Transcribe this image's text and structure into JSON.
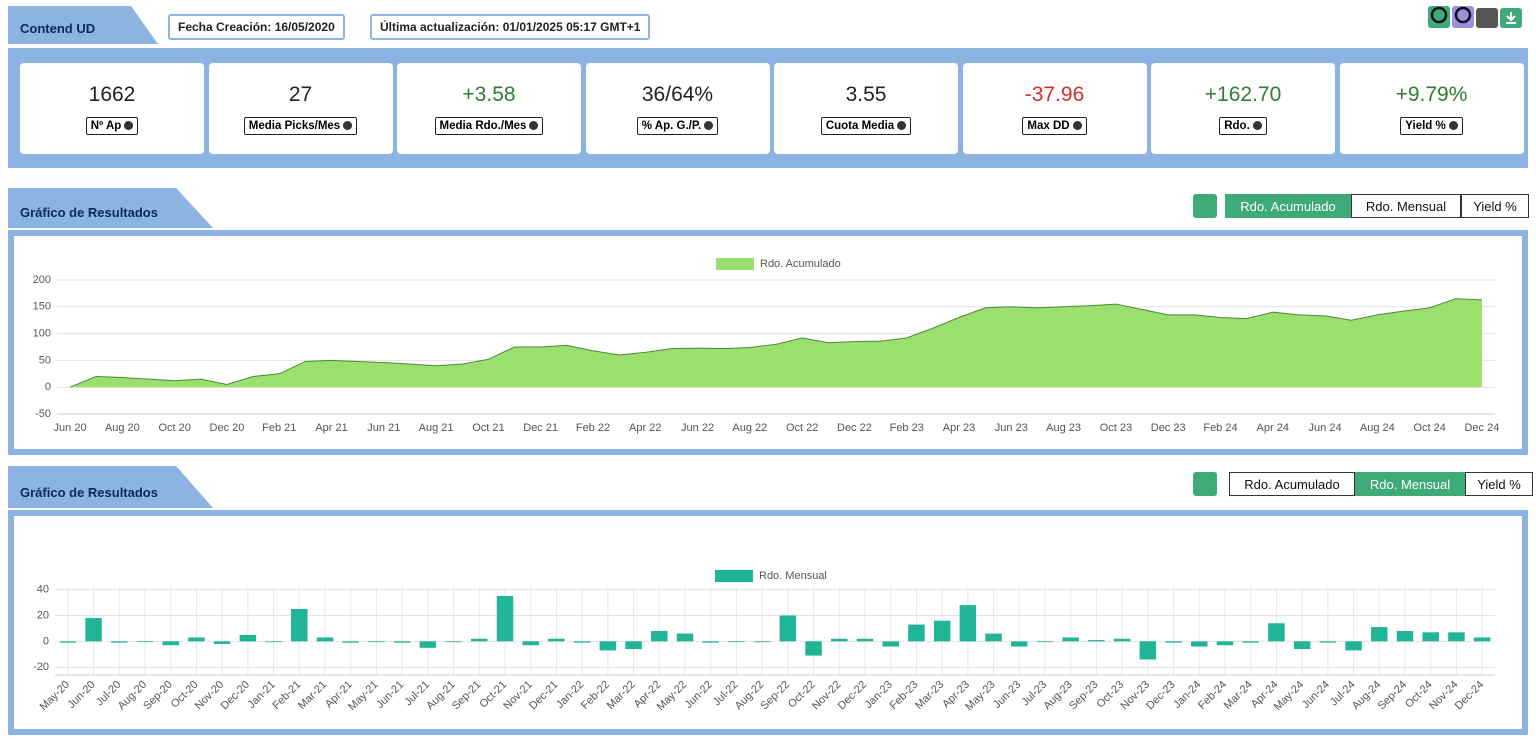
{
  "header": {
    "title": "Contend UD",
    "created": "Fecha Creación: 16/05/2020",
    "updated": "Última actualización: 01/01/2025 05:17 GMT+1"
  },
  "stats": [
    {
      "value": "1662",
      "label": "Nº Ap",
      "color": "#222222"
    },
    {
      "value": "27",
      "label": "Media Picks/Mes",
      "color": "#222222"
    },
    {
      "value": "+3.58",
      "label": "Media Rdo./Mes",
      "color": "#2e7d32"
    },
    {
      "value": "36/64%",
      "label": "% Ap. G./P.",
      "color": "#222222"
    },
    {
      "value": "3.55",
      "label": "Cuota Media",
      "color": "#222222"
    },
    {
      "value": "-37.96",
      "label": "Max DD",
      "color": "#d32f2f"
    },
    {
      "value": "+162.70",
      "label": "Rdo.",
      "color": "#2e7d32"
    },
    {
      "value": "+9.79%",
      "label": "Yield %",
      "color": "#2e7d32"
    }
  ],
  "panels": [
    {
      "title": "Gráfico de Resultados",
      "buttons": [
        "Rdo. Acumulado",
        "Rdo. Mensual",
        "Yield %"
      ],
      "active": 0
    },
    {
      "title": "Gráfico de Resultados",
      "buttons": [
        "Rdo. Acumulado",
        "Rdo. Mensual",
        "Yield %"
      ],
      "active": 1
    }
  ],
  "chart_data": [
    {
      "type": "area",
      "categories": [
        "Jun 20",
        null,
        "Aug 20",
        null,
        "Oct 20",
        null,
        "Dec 20",
        null,
        "Feb 21",
        null,
        "Apr 21",
        null,
        "Jun 21",
        null,
        "Aug 21",
        null,
        "Oct 21",
        null,
        "Dec 21",
        null,
        "Feb 22",
        null,
        "Apr 22",
        null,
        "Jun 22",
        null,
        "Aug 22",
        null,
        "Oct 22",
        null,
        "Dec 22",
        null,
        "Feb 23",
        null,
        "Apr 23",
        null,
        "Jun 23",
        null,
        "Aug 23",
        null,
        "Oct 23",
        null,
        "Dec 23",
        null,
        "Feb 24",
        null,
        "Apr 24",
        null,
        "Jun 24",
        null,
        "Aug 24",
        null,
        "Oct 24",
        null,
        "Dec 24"
      ],
      "series": [
        {
          "name": "Rdo. Acumulado",
          "color": "#9be06e",
          "values": [
            0,
            20,
            18,
            15,
            12,
            15,
            5,
            20,
            25,
            48,
            50,
            48,
            46,
            43,
            40,
            43,
            52,
            75,
            75,
            78,
            68,
            60,
            65,
            72,
            73,
            72,
            74,
            80,
            92,
            83,
            85,
            86,
            92,
            110,
            130,
            148,
            150,
            148,
            150,
            152,
            155,
            145,
            135,
            135,
            130,
            128,
            140,
            135,
            133,
            125,
            135,
            142,
            148,
            165,
            163
          ]
        }
      ],
      "ylim": [
        -50,
        200
      ],
      "yticks": [
        -50,
        0,
        50,
        100,
        150,
        200
      ],
      "grid": "y"
    },
    {
      "type": "bar",
      "categories": [
        "May-20",
        "Jun-20",
        "Jul-20",
        "Aug-20",
        "Sep-20",
        "Oct-20",
        "Nov-20",
        "Dec-20",
        "Jan-21",
        "Feb-21",
        "Mar-21",
        "Apr-21",
        "May-21",
        "Jun-21",
        "Jul-21",
        "Aug-21",
        "Sep-21",
        "Oct-21",
        "Nov-21",
        "Dec-21",
        "Jan-22",
        "Feb-22",
        "Mar-22",
        "Apr-22",
        "May-22",
        "Jun-22",
        "Jul-22",
        "Aug-22",
        "Sep-22",
        "Oct-22",
        "Nov-22",
        "Dec-22",
        "Jan-23",
        "Feb-23",
        "Mar-23",
        "Apr-23",
        "May-23",
        "Jun-23",
        "Jul-23",
        "Aug-23",
        "Sep-23",
        "Oct-23",
        "Nov-23",
        "Dec-23",
        "Jan-24",
        "Feb-24",
        "Mar-24",
        "Apr-24",
        "May-24",
        "Jun-24",
        "Jul-24",
        "Aug-24",
        "Sep-24",
        "Oct-24",
        "Nov-24",
        "Dec-24"
      ],
      "series": [
        {
          "name": "Rdo. Mensual",
          "color": "#20b597",
          "values": [
            -1,
            18,
            -1,
            0,
            -3,
            3,
            -2,
            5,
            0,
            25,
            3,
            -1,
            0,
            -1,
            -5,
            0,
            2,
            35,
            -3,
            2,
            -1,
            -7,
            -6,
            8,
            6,
            -1,
            0,
            0,
            20,
            -11,
            2,
            2,
            -4,
            13,
            16,
            28,
            6,
            -4,
            0,
            3,
            1,
            2,
            -14,
            -1,
            -4,
            -3,
            -1,
            14,
            -6,
            -1,
            -7,
            11,
            8,
            7,
            7,
            3
          ]
        }
      ],
      "ylim": [
        -26,
        42
      ],
      "yticks": [
        -20,
        0,
        20,
        40
      ],
      "grid": "both"
    }
  ]
}
